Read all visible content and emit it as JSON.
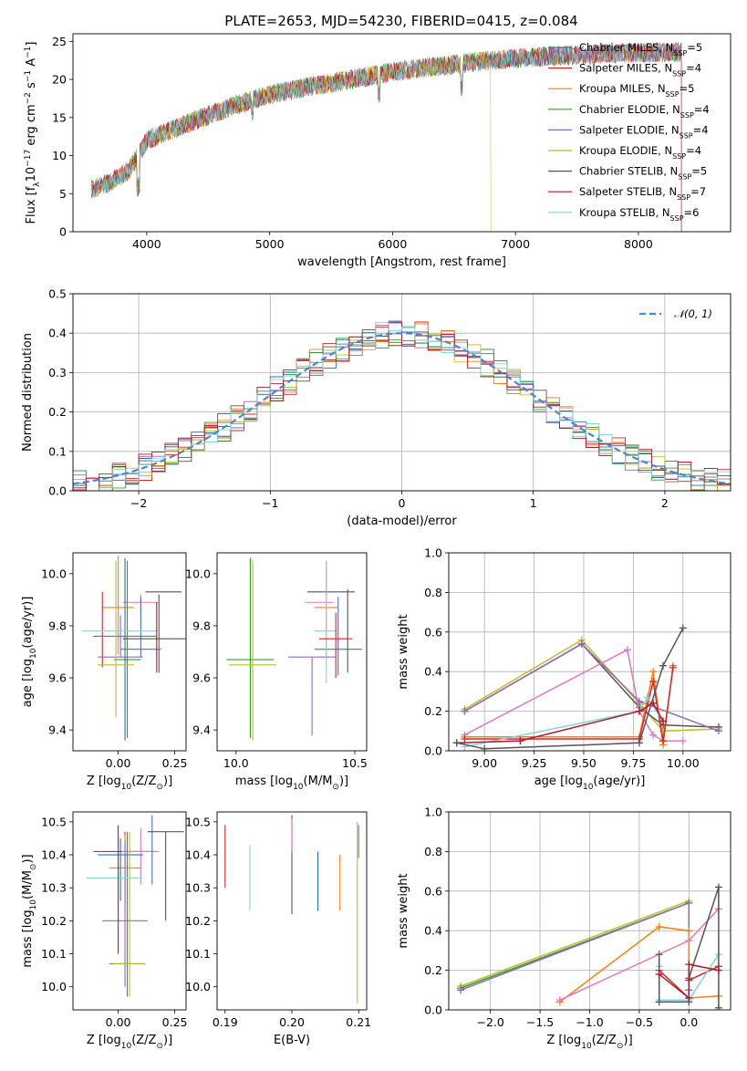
{
  "figure": {
    "title": "PLATE=2653, MJD=54230, FIBERID=0415, z=0.084"
  },
  "colors": {
    "series": [
      "#1f77b4",
      "#d62728",
      "#ff7f0e",
      "#2ca02c",
      "#9467bd",
      "#bcbd22",
      "#555555",
      "#b2182b",
      "#7fd4e0"
    ],
    "errorbar_extra": [
      "#e377c2",
      "#4c72b0"
    ],
    "normal_curve": "#4a86c8",
    "grid": "#b0b0b0"
  },
  "chart_data": [
    {
      "id": "spectrum",
      "type": "line",
      "title": "PLATE=2653, MJD=54230, FIBERID=0415, z=0.084",
      "xlabel": "wavelength [Angstrom, rest frame]",
      "ylabel": "Flux [f",
      "ylabel_sub": "λ",
      "ylabel_rest": "10",
      "ylabel_sup": "−17",
      "ylabel_tail": " erg cm",
      "ylabel_sup2": "−2",
      "ylabel_tail2": " s",
      "ylabel_sup3": "−1",
      "ylabel_tail3": " A",
      "ylabel_sup4": "−1",
      "ylabel_end": "]",
      "xlim": [
        3400,
        8750
      ],
      "ylim": [
        0,
        26
      ],
      "xticks": [
        "4000",
        "5000",
        "6000",
        "7000",
        "8000"
      ],
      "yticks": [
        "0",
        "5",
        "10",
        "15",
        "20",
        "25"
      ],
      "grid": false,
      "legend_position": "upper-right",
      "legend": [
        {
          "name": "Chabrier MILES, N",
          "sub": "SSP",
          "tail": "=5"
        },
        {
          "name": "Salpeter MILES, N",
          "sub": "SSP",
          "tail": "=4"
        },
        {
          "name": "Kroupa MILES, N",
          "sub": "SSP",
          "tail": "=5"
        },
        {
          "name": "Chabrier ELODIE, N",
          "sub": "SSP",
          "tail": "=4"
        },
        {
          "name": "Salpeter ELODIE, N",
          "sub": "SSP",
          "tail": "=4"
        },
        {
          "name": "Kroupa ELODIE, N",
          "sub": "SSP",
          "tail": "=4"
        },
        {
          "name": "Chabrier STELIB, N",
          "sub": "SSP",
          "tail": "=5"
        },
        {
          "name": "Salpeter STELIB, N",
          "sub": "SSP",
          "tail": "=7"
        },
        {
          "name": "Kroupa STELIB, N",
          "sub": "SSP",
          "tail": "=6"
        }
      ],
      "continuum": [
        [
          3550,
          5.5
        ],
        [
          3700,
          6.5
        ],
        [
          3850,
          8.0
        ],
        [
          3950,
          10.5
        ],
        [
          4000,
          12.0
        ],
        [
          4300,
          14.0
        ],
        [
          4700,
          16.5
        ],
        [
          5000,
          18.0
        ],
        [
          5300,
          19.0
        ],
        [
          5600,
          19.8
        ],
        [
          6000,
          21.0
        ],
        [
          6400,
          21.8
        ],
        [
          6800,
          22.5
        ],
        [
          7200,
          23.0
        ],
        [
          7600,
          23.3
        ],
        [
          8000,
          23.5
        ],
        [
          8350,
          23.6
        ]
      ],
      "series_ranges": [
        [
          3550,
          8350
        ],
        [
          3550,
          8350
        ],
        [
          3550,
          8350
        ],
        [
          3550,
          8350
        ],
        [
          3550,
          8350
        ],
        [
          3550,
          6800
        ],
        [
          3550,
          8350
        ],
        [
          3550,
          8350
        ],
        [
          3550,
          8350
        ]
      ]
    },
    {
      "id": "residuals",
      "type": "area",
      "xlabel": "(data-model)/error",
      "ylabel": "Normed distribution",
      "xlim": [
        -2.5,
        2.5
      ],
      "ylim": [
        0,
        0.5
      ],
      "xticks": [
        "−2",
        "−1",
        "0",
        "1",
        "2"
      ],
      "yticks": [
        "0.0",
        "0.1",
        "0.2",
        "0.3",
        "0.4",
        "0.5"
      ],
      "grid": true,
      "legend_position": "upper-right",
      "legend": [
        "𝒩(0, 1)"
      ],
      "bin_width": 0.1,
      "peak": 0.4
    },
    {
      "id": "age_vs_Z",
      "type": "scatter",
      "xlabel": "Z [log",
      "xlabel_sub": "10",
      "xlabel_rest": "(Z/Z",
      "xlabel_sub2": "⊙",
      "xlabel_end": ")]",
      "ylabel": "age  [log",
      "ylabel_sub": "10",
      "ylabel_rest": "(age/yr)]",
      "xlim": [
        -0.2,
        0.3
      ],
      "ylim": [
        9.32,
        10.08
      ],
      "xticks": [
        "0.00",
        "0.25"
      ],
      "yticks": [
        "9.4",
        "9.6",
        "9.8",
        "10.0"
      ],
      "points": [
        {
          "x": 0.1,
          "y": 9.89,
          "xerr": 0.08,
          "yerr": [
            0.04,
            0.03
          ],
          "c": 9
        },
        {
          "x": 0.0,
          "y": 9.87,
          "xerr": 0.07,
          "yerr": [
            0.18,
            0.2
          ],
          "c": 2
        },
        {
          "x": -0.07,
          "y": 9.93,
          "xerr": 0.0,
          "yerr": [
            0.29,
            0.0
          ],
          "c": 1
        },
        {
          "x": 0.03,
          "y": 9.76,
          "xerr": 0.14,
          "yerr": [
            0.4,
            0.3
          ],
          "c": 0
        },
        {
          "x": 0.04,
          "y": 9.67,
          "xerr": 0.06,
          "yerr": [
            0.3,
            0.38
          ],
          "c": 3
        },
        {
          "x": 0.18,
          "y": 9.75,
          "xerr": 0.16,
          "yerr": [
            0.13,
            0.17
          ],
          "c": 6
        },
        {
          "x": 0.1,
          "y": 9.71,
          "xerr": 0.09,
          "yerr": [
            0.03,
            0.2
          ],
          "c": 10
        },
        {
          "x": 0.01,
          "y": 9.68,
          "xerr": 0.1,
          "yerr": [
            0.0,
            0.16
          ],
          "c": 4
        },
        {
          "x": -0.01,
          "y": 9.65,
          "xerr": 0.08,
          "yerr": [
            0.2,
            0.4
          ],
          "c": 5
        },
        {
          "x": 0.2,
          "y": 9.93,
          "xerr": 0.08,
          "yerr": [
            0.0,
            0.0
          ],
          "c": 6
        },
        {
          "x": -0.04,
          "y": 9.78,
          "xerr": 0.12,
          "yerr": [
            0.0,
            0.0
          ],
          "c": 8
        },
        {
          "x": 0.13,
          "y": 9.78,
          "xerr": 0.05,
          "yerr": [
            0.0,
            0.0
          ],
          "c": 8
        },
        {
          "x": 0.17,
          "y": 9.79,
          "xerr": 0.0,
          "yerr": [
            0.17,
            0.1
          ],
          "c": 7
        }
      ]
    },
    {
      "id": "age_vs_mass",
      "type": "scatter",
      "xlabel": "mass [log",
      "xlabel_sub": "10",
      "xlabel_rest": "(M/M",
      "xlabel_sub2": "⊙",
      "xlabel_end": ")]",
      "xlim": [
        9.92,
        10.55
      ],
      "ylim": [
        9.32,
        10.08
      ],
      "xticks": [
        "10.0",
        "10.5"
      ],
      "yticks": [
        "9.4",
        "9.6",
        "9.8",
        "10.0"
      ],
      "points": [
        {
          "x": 10.35,
          "y": 9.89,
          "xerr": 0.06,
          "yerr": [
            0.0,
            0.0
          ],
          "c": 9
        },
        {
          "x": 10.38,
          "y": 9.87,
          "xerr": 0.05,
          "yerr": [
            0.2,
            0.18
          ],
          "c": 2
        },
        {
          "x": 10.4,
          "y": 9.93,
          "xerr": 0.1,
          "yerr": [
            0.0,
            0.0
          ],
          "c": 6
        },
        {
          "x": 10.06,
          "y": 9.67,
          "xerr": 0.1,
          "yerr": [
            0.3,
            0.39
          ],
          "c": 3
        },
        {
          "x": 10.07,
          "y": 9.65,
          "xerr": 0.1,
          "yerr": [
            0.29,
            0.4
          ],
          "c": 5
        },
        {
          "x": 10.32,
          "y": 9.68,
          "xerr": 0.1,
          "yerr": [
            0.3,
            0.0
          ],
          "c": 4
        },
        {
          "x": 10.43,
          "y": 9.71,
          "xerr": 0.1,
          "yerr": [
            0.1,
            0.2
          ],
          "c": 10
        },
        {
          "x": 10.38,
          "y": 9.78,
          "xerr": 0.05,
          "yerr": [
            0.2,
            0.27
          ],
          "c": 8
        },
        {
          "x": 10.42,
          "y": 9.75,
          "xerr": 0.07,
          "yerr": [
            0.15,
            0.1
          ],
          "c": 1
        },
        {
          "x": 10.47,
          "y": 9.8,
          "xerr": 0.0,
          "yerr": [
            0.18,
            0.14
          ],
          "c": 6
        }
      ]
    },
    {
      "id": "weight_vs_age",
      "type": "line",
      "xlabel": "age  [log",
      "xlabel_sub": "10",
      "xlabel_rest": "(age/yr)]",
      "ylabel": "mass weight",
      "xlim": [
        8.82,
        10.24
      ],
      "ylim": [
        0,
        1
      ],
      "xticks": [
        "9.00",
        "9.25",
        "9.50",
        "9.75",
        "10.00"
      ],
      "yticks": [
        "0.0",
        "0.2",
        "0.4",
        "0.6",
        "0.8",
        "1.0"
      ],
      "grid": true,
      "series": [
        {
          "c": 5,
          "x": [
            8.9,
            9.49,
            9.78,
            9.9,
            10.18
          ],
          "y": [
            0.21,
            0.56,
            0.24,
            0.1,
            0.11
          ]
        },
        {
          "c": 6,
          "x": [
            8.9,
            9.49,
            9.78,
            9.9,
            10.18
          ],
          "y": [
            0.2,
            0.54,
            0.22,
            0.13,
            0.12
          ]
        },
        {
          "c": 4,
          "x": [
            8.9,
            9.49,
            9.78,
            10.18
          ],
          "y": [
            0.2,
            0.54,
            0.25,
            0.1
          ]
        },
        {
          "c": 9,
          "x": [
            8.9,
            9.72,
            9.78,
            9.85,
            9.9,
            10.0
          ],
          "y": [
            0.08,
            0.51,
            0.2,
            0.08,
            0.05,
            0.05
          ]
        },
        {
          "c": 2,
          "x": [
            8.9,
            9.78,
            9.85,
            9.9,
            9.95
          ],
          "y": [
            0.07,
            0.07,
            0.4,
            0.03,
            0.43
          ]
        },
        {
          "c": 1,
          "x": [
            8.9,
            9.78,
            9.85,
            9.9,
            9.95
          ],
          "y": [
            0.06,
            0.06,
            0.35,
            0.05,
            0.42
          ]
        },
        {
          "c": 8,
          "x": [
            8.9,
            9.78,
            9.82,
            9.9
          ],
          "y": [
            0.02,
            0.2,
            0.27,
            0.15
          ]
        },
        {
          "c": 7,
          "x": [
            8.86,
            9.18,
            9.78,
            9.85,
            9.9
          ],
          "y": [
            0.04,
            0.05,
            0.2,
            0.24,
            0.15
          ]
        },
        {
          "c": 6,
          "x": [
            8.86,
            9.0,
            9.78,
            9.9,
            10.0
          ],
          "y": [
            0.04,
            0.01,
            0.04,
            0.43,
            0.62
          ]
        }
      ]
    },
    {
      "id": "mass_vs_Z",
      "type": "scatter",
      "xlabel": "Z [log",
      "xlabel_sub": "10",
      "xlabel_rest": "(Z/Z",
      "xlabel_sub2": "⊙",
      "xlabel_end": ")]",
      "ylabel": "mass [log",
      "ylabel_sub": "10",
      "ylabel_rest": "(M/M",
      "ylabel_sub2": "⊙",
      "ylabel_end": ")]",
      "xlim": [
        -0.2,
        0.3
      ],
      "ylim": [
        9.93,
        10.53
      ],
      "xticks": [
        "0.00",
        "0.25"
      ],
      "yticks": [
        "10.0",
        "10.1",
        "10.2",
        "10.3",
        "10.4",
        "10.5"
      ],
      "points": [
        {
          "x": 0.03,
          "y": 10.41,
          "xerr": 0.14,
          "yerr": [
            0.16,
            0.06
          ],
          "c": 1
        },
        {
          "x": 0.03,
          "y": 10.36,
          "xerr": 0.07,
          "yerr": [
            0.13,
            0.1
          ],
          "c": 2
        },
        {
          "x": 0.1,
          "y": 10.41,
          "xerr": 0.08,
          "yerr": [
            0.1,
            0.07
          ],
          "c": 9
        },
        {
          "x": 0.01,
          "y": 10.4,
          "xerr": 0.1,
          "yerr": [
            0.14,
            0.05
          ],
          "c": 0
        },
        {
          "x": 0.03,
          "y": 10.2,
          "xerr": 0.1,
          "yerr": [
            0.2,
            0.24
          ],
          "c": 4
        },
        {
          "x": 0.04,
          "y": 10.07,
          "xerr": 0.08,
          "yerr": [
            0.1,
            0.4
          ],
          "c": 3
        },
        {
          "x": 0.05,
          "y": 10.07,
          "xerr": 0.07,
          "yerr": [
            0.1,
            0.4
          ],
          "c": 5
        },
        {
          "x": -0.02,
          "y": 10.33,
          "xerr": 0.12,
          "yerr": [
            0.0,
            0.0
          ],
          "c": 8
        },
        {
          "x": 0.15,
          "y": 10.36,
          "xerr": 0.0,
          "yerr": [
            0.05,
            0.16
          ],
          "c": 10
        },
        {
          "x": 0.21,
          "y": 10.47,
          "xerr": 0.08,
          "yerr": [
            0.27,
            0.0
          ],
          "c": 6
        },
        {
          "x": 0.0,
          "y": 10.1,
          "xerr": 0.0,
          "yerr": [
            0.0,
            0.39
          ],
          "c": 7
        }
      ]
    },
    {
      "id": "mass_vs_ebv",
      "type": "scatter",
      "xlabel": "E(B-V)",
      "xlim": [
        0.1888,
        0.2112
      ],
      "ylim": [
        9.93,
        10.53
      ],
      "xticks": [
        "0.19",
        "0.20",
        "0.21"
      ],
      "yticks": [
        "10.0",
        "10.1",
        "10.2",
        "10.3",
        "10.4",
        "10.5"
      ],
      "points": [
        {
          "x": 0.19,
          "y": 10.4,
          "yerr": [
            0.1,
            0.09
          ],
          "c": 1
        },
        {
          "x": 0.1937,
          "y": 10.33,
          "yerr": [
            0.1,
            0.1
          ],
          "c": 8
        },
        {
          "x": 0.2,
          "y": 10.4,
          "yerr": [
            0.18,
            0.12
          ],
          "c": 6
        },
        {
          "x": 0.2,
          "y": 10.45,
          "yerr": [
            0.04,
            0.06
          ],
          "c": 9
        },
        {
          "x": 0.2039,
          "y": 10.33,
          "yerr": [
            0.1,
            0.08
          ],
          "c": 0
        },
        {
          "x": 0.2072,
          "y": 10.32,
          "yerr": [
            0.09,
            0.08
          ],
          "c": 2
        },
        {
          "x": 0.2098,
          "y": 10.4,
          "yerr": [
            0.45,
            0.1
          ],
          "c": 5
        },
        {
          "x": 0.21,
          "y": 10.45,
          "yerr": [
            0.06,
            0.04
          ],
          "c": 4
        }
      ]
    },
    {
      "id": "weight_vs_Z",
      "type": "line",
      "xlabel": "Z [log",
      "xlabel_sub": "10",
      "xlabel_rest": "(Z/Z",
      "xlabel_sub2": "⊙",
      "xlabel_end": ")]",
      "ylabel": "mass weight",
      "xlim": [
        -2.42,
        0.42
      ],
      "ylim": [
        0,
        1
      ],
      "xticks": [
        "−2.0",
        "−1.5",
        "−1.0",
        "−0.5",
        "0.0"
      ],
      "yticks": [
        "0.0",
        "0.2",
        "0.4",
        "0.6",
        "0.8",
        "1.0"
      ],
      "grid": true,
      "series": [
        {
          "c": 5,
          "x": [
            -2.3,
            0.0,
            0.0
          ],
          "y": [
            0.12,
            0.55,
            0.1
          ]
        },
        {
          "c": 3,
          "x": [
            -2.3,
            0.0
          ],
          "y": [
            0.11,
            0.54
          ]
        },
        {
          "c": 4,
          "x": [
            -2.3,
            0.0,
            0.0
          ],
          "y": [
            0.1,
            0.54,
            0.1
          ]
        },
        {
          "c": 2,
          "x": [
            -1.3,
            -0.3,
            0.0,
            0.0,
            0.3
          ],
          "y": [
            0.04,
            0.42,
            0.4,
            0.06,
            0.07
          ]
        },
        {
          "c": 9,
          "x": [
            -1.3,
            0.0,
            0.3
          ],
          "y": [
            0.05,
            0.35,
            0.51
          ]
        },
        {
          "c": 1,
          "x": [
            -0.3,
            0.0,
            0.0,
            0.3
          ],
          "y": [
            0.2,
            0.06,
            0.15,
            0.22
          ]
        },
        {
          "c": 8,
          "x": [
            -0.3,
            -0.3,
            0.0,
            0.3
          ],
          "y": [
            0.22,
            0.05,
            0.05,
            0.28
          ]
        },
        {
          "c": 6,
          "x": [
            -0.3,
            -0.3,
            0.0,
            0.0,
            0.3,
            0.3
          ],
          "y": [
            0.28,
            0.04,
            0.04,
            0.16,
            0.62,
            0.01
          ]
        },
        {
          "c": 7,
          "x": [
            -0.3,
            0.0,
            0.0,
            0.3
          ],
          "y": [
            0.18,
            0.06,
            0.23,
            0.2
          ]
        }
      ]
    }
  ]
}
